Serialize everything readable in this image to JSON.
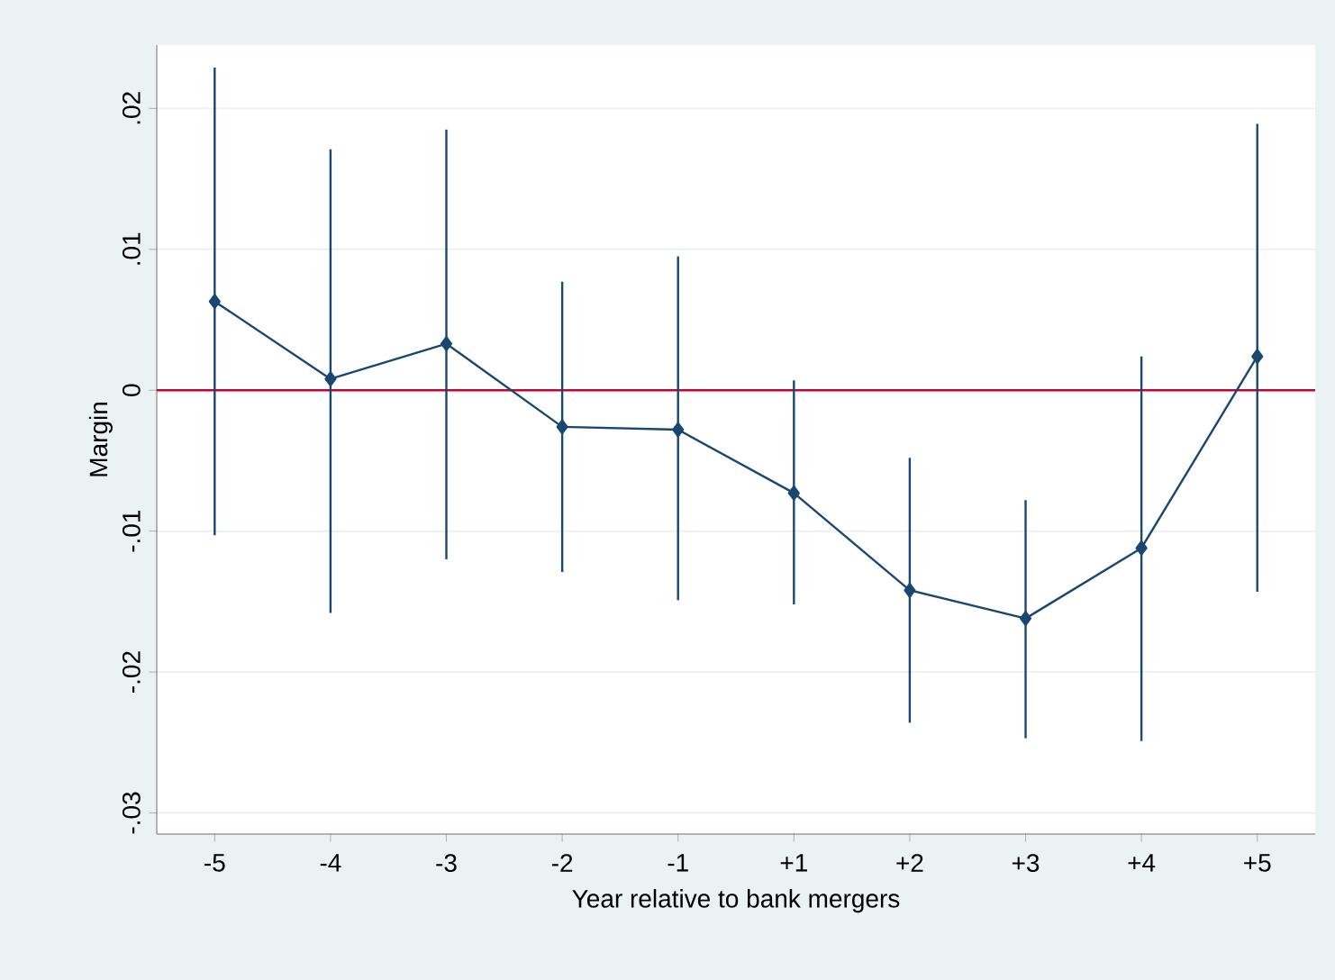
{
  "chart_data": {
    "type": "line",
    "xlabel": "Year relative to bank mergers",
    "ylabel": "Margin",
    "categories": [
      "-5",
      "-4",
      "-3",
      "-2",
      "-1",
      "+1",
      "+2",
      "+3",
      "+4",
      "+5"
    ],
    "series": [
      {
        "color": "#1a476f",
        "values": [
          0.0063,
          0.0008,
          0.0033,
          -0.0026,
          -0.0028,
          -0.0073,
          -0.0142,
          -0.0162,
          -0.0112,
          0.0024
        ],
        "errors": [
          [
            -0.0103,
            0.0229
          ],
          [
            -0.0158,
            0.0171
          ],
          [
            -0.012,
            0.0185
          ],
          [
            -0.0129,
            0.0077
          ],
          [
            -0.0149,
            0.0095
          ],
          [
            -0.0152,
            0.0007
          ],
          [
            -0.0236,
            -0.0048
          ],
          [
            -0.0247,
            -0.0078
          ],
          [
            -0.0249,
            0.0024
          ],
          [
            -0.0143,
            0.0189
          ]
        ]
      }
    ],
    "ylim": [
      -0.0315,
      0.0245
    ],
    "yticks": [
      {
        "value": -0.03,
        "label": "-.03"
      },
      {
        "value": -0.02,
        "label": "-.02"
      },
      {
        "value": -0.01,
        "label": "-.01"
      },
      {
        "value": 0,
        "label": "0"
      },
      {
        "value": 0.01,
        "label": ".01"
      },
      {
        "value": 0.02,
        "label": ".02"
      }
    ],
    "ref_lines": [
      {
        "axis": "y",
        "value": 0,
        "color": "#c10534"
      }
    ],
    "grid": "y",
    "marker": "diamond",
    "line_style": "solid"
  }
}
